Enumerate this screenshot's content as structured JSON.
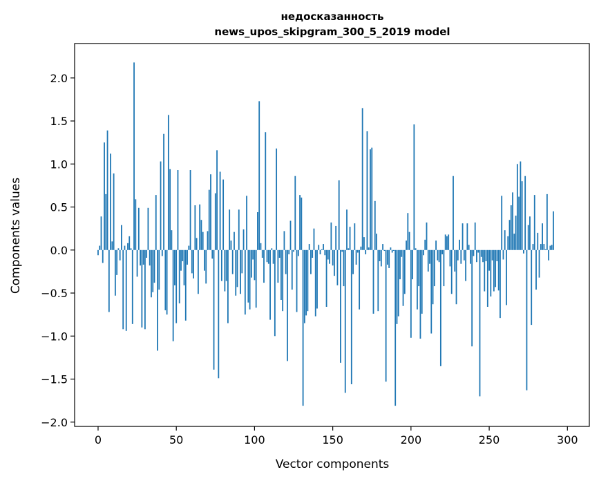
{
  "chart_data": {
    "type": "bar",
    "title": "недосказанность",
    "subtitle": "news_upos_skipgram_300_5_2019 model",
    "xlabel": "Vector components",
    "ylabel": "Components values",
    "xlim": [
      -15,
      314
    ],
    "ylim": [
      -2.05,
      2.4
    ],
    "xticks": [
      0,
      50,
      100,
      150,
      200,
      250,
      300
    ],
    "yticks": [
      -2.0,
      -1.5,
      -1.0,
      -0.5,
      0.0,
      0.5,
      1.0,
      1.5,
      2.0
    ],
    "ytick_labels": [
      "−2.0",
      "−1.5",
      "−1.0",
      "−0.5",
      "0.0",
      "0.5",
      "1.0",
      "1.5",
      "2.0"
    ],
    "bar_color": "#1f77b4",
    "values": [
      -0.06,
      0.05,
      0.39,
      -0.15,
      1.25,
      0.65,
      1.39,
      -0.72,
      1.12,
      0.1,
      0.89,
      -0.53,
      -0.29,
      0.02,
      -0.12,
      0.29,
      -0.92,
      0.05,
      -0.94,
      0.08,
      0.16,
      0.02,
      -0.86,
      2.18,
      0.59,
      -0.31,
      0.49,
      -0.18,
      -0.9,
      -0.17,
      -0.92,
      -0.09,
      0.49,
      -0.18,
      -0.55,
      -0.49,
      -0.38,
      0.64,
      -1.17,
      -0.46,
      1.03,
      -0.07,
      1.35,
      -0.7,
      -0.75,
      1.57,
      0.94,
      0.23,
      -1.06,
      -0.41,
      -0.85,
      0.93,
      -0.62,
      -0.24,
      -0.13,
      -0.41,
      -0.82,
      -0.17,
      0.05,
      0.93,
      -0.27,
      -0.33,
      0.52,
      0.14,
      -0.51,
      0.53,
      0.35,
      0.21,
      -0.24,
      -0.39,
      0.22,
      0.7,
      0.88,
      -0.1,
      -1.39,
      0.66,
      1.16,
      -1.49,
      0.91,
      -0.36,
      0.82,
      -0.48,
      -0.36,
      -0.85,
      0.47,
      0.11,
      -0.28,
      0.21,
      -0.53,
      -0.43,
      0.47,
      -0.51,
      -0.27,
      0.24,
      -0.75,
      0.63,
      -0.61,
      -0.69,
      -0.32,
      -0.11,
      -0.35,
      -0.67,
      0.44,
      1.73,
      0.08,
      -0.09,
      -0.38,
      1.37,
      -0.14,
      -0.16,
      -0.81,
      0.02,
      -0.16,
      -1.0,
      1.18,
      -0.38,
      -0.09,
      -0.58,
      -0.71,
      0.22,
      -0.28,
      -1.29,
      -0.05,
      0.34,
      -0.46,
      -0.02,
      0.86,
      -0.72,
      -0.07,
      0.64,
      0.61,
      -1.81,
      -0.85,
      -0.76,
      -0.71,
      0.07,
      -0.28,
      -0.09,
      0.25,
      -0.77,
      -0.68,
      0.06,
      -0.05,
      0.01,
      0.07,
      -0.06,
      -0.66,
      -0.11,
      -0.16,
      0.32,
      -0.18,
      -0.3,
      0.28,
      -0.41,
      0.81,
      -1.31,
      -0.02,
      -0.42,
      -1.66,
      0.47,
      0.02,
      0.27,
      -1.56,
      -0.28,
      0.31,
      -0.17,
      -0.03,
      -0.69,
      0.04,
      1.65,
      0.15,
      -0.05,
      1.38,
      0.03,
      1.17,
      1.19,
      -0.74,
      0.57,
      0.19,
      -0.71,
      -0.13,
      -0.19,
      0.07,
      -0.01,
      -1.53,
      -0.17,
      -0.21,
      0.03,
      -0.03,
      -0.01,
      -1.81,
      -0.86,
      -0.77,
      -0.34,
      -0.08,
      -0.65,
      -0.51,
      0.11,
      0.43,
      0.21,
      -1.02,
      -0.34,
      1.46,
      0.02,
      -0.69,
      -0.42,
      -1.03,
      -0.74,
      -0.06,
      0.12,
      0.32,
      -0.25,
      -0.16,
      -0.97,
      -0.63,
      -0.42,
      0.11,
      -0.12,
      -0.14,
      -1.35,
      -0.05,
      -0.42,
      0.18,
      0.16,
      0.18,
      -0.19,
      -0.51,
      0.86,
      -0.25,
      -0.63,
      -0.12,
      0.12,
      -0.16,
      0.31,
      -0.12,
      -0.36,
      0.31,
      0.06,
      -0.16,
      -1.12,
      -0.07,
      0.32,
      -0.14,
      -0.03,
      -1.7,
      -0.08,
      -0.14,
      -0.48,
      -0.13,
      -0.66,
      -0.24,
      -0.54,
      -0.12,
      -0.48,
      -0.43,
      -0.13,
      -0.47,
      -0.79,
      0.63,
      -0.11,
      0.23,
      -0.64,
      0.16,
      0.35,
      0.52,
      0.67,
      0.19,
      0.4,
      1.0,
      0.62,
      1.03,
      0.8,
      -0.04,
      0.86,
      -1.63,
      0.29,
      0.39,
      -0.87,
      0.07,
      0.64,
      -0.46,
      0.2,
      -0.32,
      0.07,
      0.31,
      0.07,
      0.01,
      0.65,
      -0.12,
      0.05,
      0.06,
      0.45
    ]
  }
}
